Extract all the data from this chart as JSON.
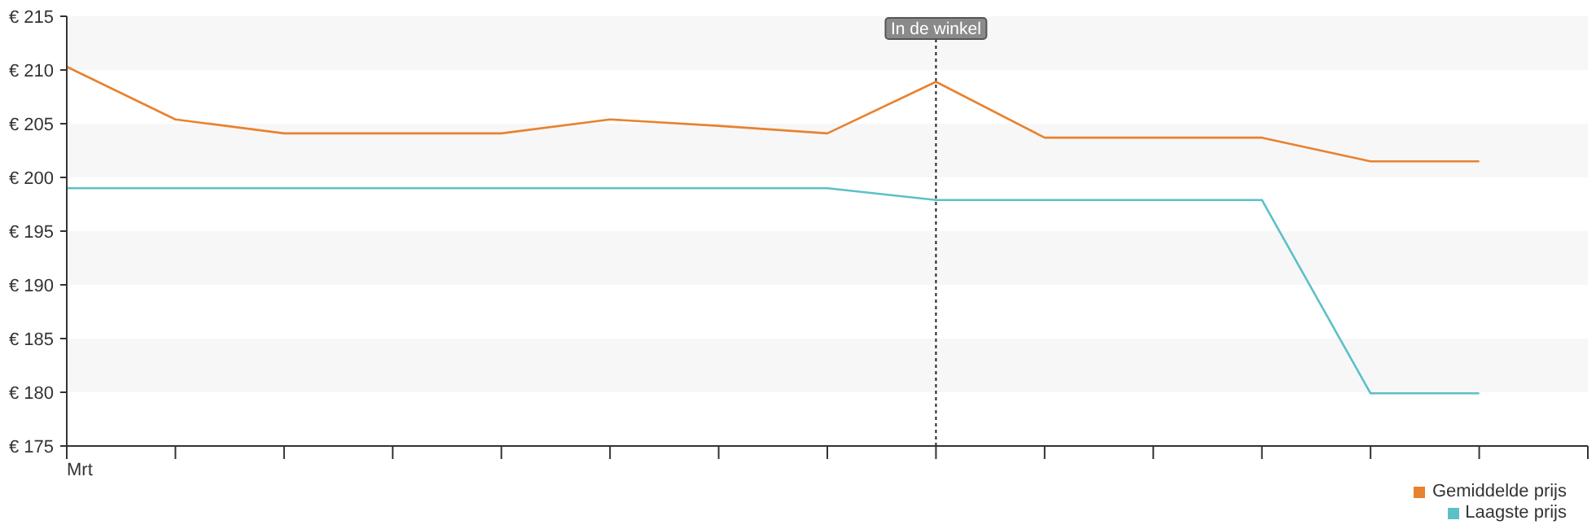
{
  "chart_data": {
    "type": "line",
    "categories": [
      "Mrt",
      null,
      null,
      null,
      null,
      null,
      null,
      null,
      null,
      null,
      null,
      null,
      null,
      null,
      null
    ],
    "series": [
      {
        "name": "Gemiddelde prijs",
        "color": "#e8822e",
        "values": [
          210.3,
          205.4,
          204.1,
          204.1,
          204.1,
          205.4,
          204.8,
          204.1,
          208.9,
          203.7,
          203.7,
          203.7,
          201.5,
          201.5,
          null
        ]
      },
      {
        "name": "Laagste prijs",
        "color": "#5bc0c8",
        "values": [
          199,
          199,
          199,
          199,
          199,
          199,
          199,
          199,
          197.9,
          197.9,
          197.9,
          197.9,
          179.9,
          179.9,
          null
        ]
      }
    ],
    "ylim": [
      175,
      215
    ],
    "yticks": [
      {
        "value": 175,
        "label": "€ 175"
      },
      {
        "value": 180,
        "label": "€ 180"
      },
      {
        "value": 185,
        "label": "€ 185"
      },
      {
        "value": 190,
        "label": "€ 190"
      },
      {
        "value": 195,
        "label": "€ 195"
      },
      {
        "value": 200,
        "label": "€ 200"
      },
      {
        "value": 205,
        "label": "€ 205"
      },
      {
        "value": 210,
        "label": "€ 210"
      },
      {
        "value": 215,
        "label": "€ 215"
      }
    ],
    "bands": [
      {
        "axis": "y",
        "from": 180,
        "to": 185,
        "color": "#f7f7f7"
      },
      {
        "axis": "y",
        "from": 190,
        "to": 195,
        "color": "#f7f7f7"
      },
      {
        "axis": "y",
        "from": 200,
        "to": 205,
        "color": "#f7f7f7"
      },
      {
        "axis": "y",
        "from": 210,
        "to": 215,
        "color": "#f7f7f7"
      }
    ],
    "legend": "bottom right",
    "marker": "none",
    "line_style": "solid",
    "annotations": [
      "In de winkel"
    ]
  }
}
